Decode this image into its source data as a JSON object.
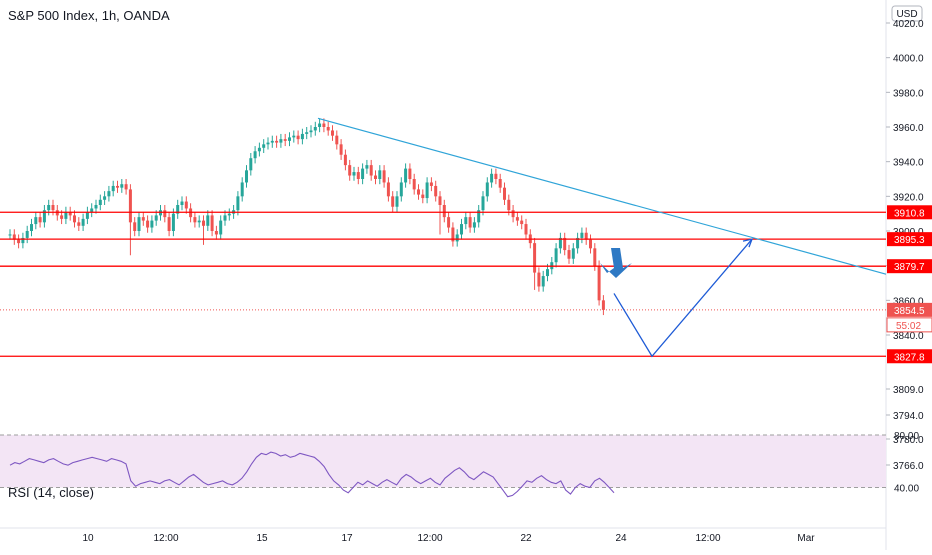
{
  "chart_data": {
    "type": "candlestick",
    "title": "S&P 500 Index, 1h, OANDA",
    "currency": "USD",
    "colors": {
      "up": "#26a69a",
      "down": "#ef5350",
      "trendline": "#2fa4d8",
      "level": "#ff0000",
      "projection": "#1e5bd6",
      "arrow": "#2e79c4",
      "rsi_line": "#7e57c2",
      "rsi_band": "#f3e5f5"
    },
    "y_ticks": [
      "4020.0",
      "4000.0",
      "3980.0",
      "3960.0",
      "3940.0",
      "3920.0",
      "3900.0",
      "3880.0",
      "3860.0",
      "3840.0",
      "3809.0",
      "3794.0",
      "3780.0",
      "3766.0"
    ],
    "x_ticks": [
      "10",
      "12:00",
      "15",
      "17",
      "12:00",
      "22",
      "24",
      "12:00",
      "Mar"
    ],
    "price_levels": [
      {
        "value": 3910.8,
        "label": "3910.8"
      },
      {
        "value": 3895.3,
        "label": "3895.3"
      },
      {
        "value": 3879.7,
        "label": "3879.7"
      },
      {
        "value": 3827.8,
        "label": "3827.8"
      }
    ],
    "last_price": {
      "value": 3854.5,
      "label": "3854.5",
      "countdown": "55:02"
    },
    "trendline": {
      "from_price": 3965,
      "to_price": 3879.7
    },
    "projection": [
      3864,
      3827.8,
      3895.3
    ],
    "candles_close": [
      3898,
      3895,
      3893,
      3896,
      3900,
      3904,
      3908,
      3905,
      3912,
      3915,
      3912,
      3909,
      3907,
      3911,
      3909,
      3905,
      3903,
      3907,
      3911,
      3913,
      3915,
      3918,
      3920,
      3923,
      3926,
      3925,
      3927,
      3924,
      3905,
      3900,
      3908,
      3906,
      3902,
      3906,
      3909,
      3912,
      3908,
      3900,
      3910,
      3915,
      3917,
      3913,
      3908,
      3905,
      3906,
      3903,
      3909,
      3900,
      3898,
      3906,
      3909,
      3910,
      3912,
      3920,
      3928,
      3935,
      3942,
      3946,
      3948,
      3950,
      3951,
      3952,
      3951,
      3953,
      3952,
      3954,
      3955,
      3953,
      3956,
      3957,
      3958,
      3960,
      3962,
      3960,
      3958,
      3955,
      3950,
      3944,
      3938,
      3932,
      3934,
      3930,
      3936,
      3938,
      3932,
      3930,
      3935,
      3928,
      3920,
      3914,
      3920,
      3928,
      3936,
      3930,
      3924,
      3921,
      3919,
      3928,
      3926,
      3920,
      3915,
      3908,
      3902,
      3894,
      3898,
      3904,
      3908,
      3902,
      3905,
      3912,
      3920,
      3928,
      3933,
      3930,
      3925,
      3918,
      3912,
      3908,
      3906,
      3904,
      3898,
      3893,
      3876,
      3868,
      3874,
      3878,
      3882,
      3890,
      3896,
      3889,
      3884,
      3890,
      3896,
      3899,
      3895,
      3890,
      3880,
      3860,
      3854.5
    ],
    "rsi": {
      "label": "RSI (14, close)",
      "upper": 80.0,
      "lower": 40.0,
      "ticks": [
        "80.00",
        "40.00"
      ],
      "values": [
        57,
        59,
        58,
        60,
        62,
        61,
        60,
        59,
        61,
        62,
        60,
        58,
        57,
        59,
        60,
        61,
        62,
        63,
        62,
        61,
        60,
        62,
        61,
        60,
        58,
        45,
        41,
        43,
        44,
        45,
        44,
        43,
        45,
        46,
        44,
        42,
        45,
        48,
        50,
        47,
        44,
        42,
        43,
        44,
        45,
        43,
        42,
        44,
        47,
        52,
        58,
        63,
        66,
        65,
        67,
        66,
        64,
        65,
        63,
        64,
        66,
        65,
        64,
        63,
        60,
        56,
        50,
        45,
        42,
        38,
        36,
        40,
        44,
        42,
        45,
        43,
        41,
        44,
        46,
        44,
        42,
        47,
        50,
        48,
        45,
        43,
        45,
        47,
        44,
        42,
        47,
        50,
        53,
        55,
        52,
        48,
        46,
        49,
        52,
        50,
        48,
        43,
        38,
        33,
        34,
        37,
        41,
        45,
        44,
        47,
        49,
        46,
        44,
        43,
        45,
        38,
        35,
        40,
        43,
        41,
        40,
        45,
        47,
        44,
        40,
        36
      ]
    }
  }
}
